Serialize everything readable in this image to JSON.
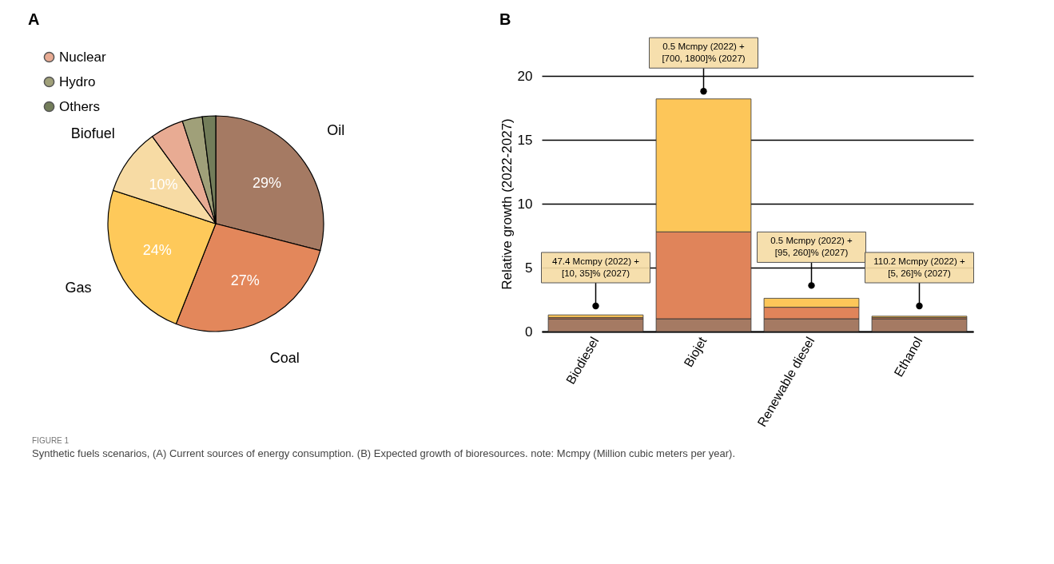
{
  "chart_data": [
    {
      "type": "pie",
      "title": "A",
      "categories": [
        "Oil",
        "Coal",
        "Gas",
        "Biofuel",
        "Nuclear",
        "Hydro",
        "Others"
      ],
      "values": [
        29,
        27,
        24,
        10,
        5,
        3,
        2
      ],
      "colors": [
        "#a57a63",
        "#e3875b",
        "#fec95a",
        "#f7dba4",
        "#e8ab93",
        "#a0a079",
        "#737d5a"
      ],
      "value_labels": [
        "29%",
        "27%",
        "24%",
        "10%",
        null,
        null,
        null
      ],
      "legend": "top left"
    },
    {
      "type": "bar",
      "title": "B",
      "ylabel": "Relative growth (2022-2027)",
      "categories": [
        "Biodiesel",
        "Biojet",
        "Renewable diesel",
        "Ethanol"
      ],
      "stacked": true,
      "series": [
        {
          "color": "#a57a63",
          "values": [
            1.0,
            1.0,
            1.0,
            1.0
          ]
        },
        {
          "color": "#e0845a",
          "values": [
            0.1,
            6.8,
            0.9,
            0.1
          ]
        },
        {
          "color": "#fdc659",
          "values": [
            0.2,
            10.4,
            0.7,
            0.1
          ]
        }
      ],
      "ylim": [
        0,
        20
      ],
      "yticks": [
        0,
        5,
        10,
        15,
        20
      ],
      "grid": "y",
      "annotations": [
        {
          "text": "47.4 Mcmpy (2022) +\n[10, 35]% (2027)",
          "x": "Biodiesel",
          "y": 2.0
        },
        {
          "text": "0.5 Mcmpy (2022) +\n[700, 1800]% (2027)",
          "x": "Biojet",
          "y": 18.8
        },
        {
          "text": "0.5 Mcmpy (2022) +\n[95, 260]% (2027)",
          "x": "Renewable diesel",
          "y": 3.6
        },
        {
          "text": "110.2 Mcmpy (2022) +\n[5, 26]% (2027)",
          "x": "Ethanol",
          "y": 2.0
        },
        "FIGURE 1",
        "Synthetic fuels scenarios, (A) Current sources of energy consumption. (B) Expected growth of bioresources. note: Mcmpy (Million cubic meters per year)."
      ]
    }
  ]
}
